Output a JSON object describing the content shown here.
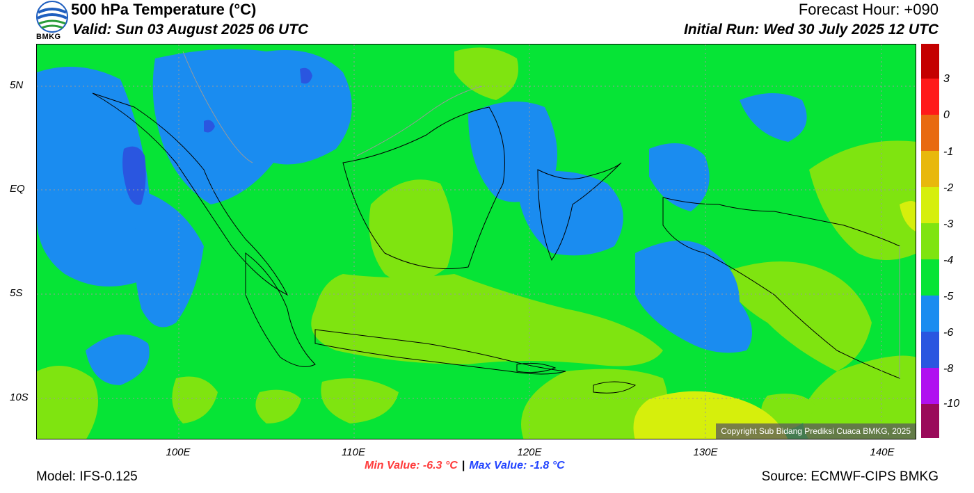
{
  "header": {
    "title": "500 hPa Temperature (°C)",
    "valid": "Valid: Sun 03 August 2025 06 UTC",
    "forecast_hour": "Forecast Hour: +090",
    "initial_run": "Initial Run: Wed 30 July 2025 12 UTC",
    "logo_text": "BMKG"
  },
  "map": {
    "lat_labels": [
      "5N",
      "EQ",
      "5S",
      "10S"
    ],
    "lon_labels": [
      "100E",
      "110E",
      "120E",
      "130E",
      "140E"
    ],
    "copyright": "Copyright Sub Bidang Prediksi Cuaca BMKG, 2025",
    "colors": {
      "minus4_to_minus5": "#06e436",
      "minus3_to_minus4": "#7fe410",
      "minus5_to_minus6": "#1a8cf0",
      "minus6_to_minus8": "#2a56e0",
      "minus2_to_minus3": "#d6ef0c",
      "coastline": "#000000"
    }
  },
  "colorbar": {
    "levels": [
      "3",
      "0",
      "-1",
      "-2",
      "-3",
      "-4",
      "-5",
      "-6",
      "-8",
      "-10"
    ],
    "colors": [
      "#c40000",
      "#e00000",
      "#ff1a1a",
      "#e86a10",
      "#e8b80c",
      "#d6ef0c",
      "#7fe410",
      "#06e436",
      "#1a8cf0",
      "#2a56e0",
      "#b010f0",
      "#9a0a5a"
    ]
  },
  "footer": {
    "min_value": "Min Value: -6.3 °C",
    "separator": "|",
    "max_value": "Max Value: -1.8 °C",
    "model": "Model: IFS-0.125",
    "source": "Source: ECMWF-CIPS BMKG"
  }
}
